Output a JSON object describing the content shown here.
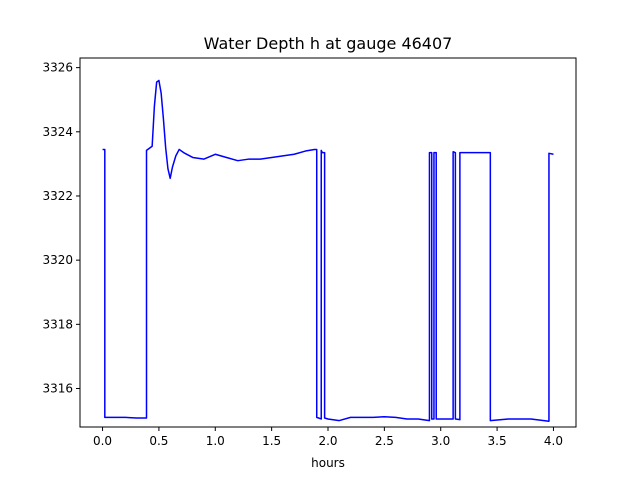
{
  "chart_data": {
    "type": "line",
    "title": "Water Depth h at gauge 46407",
    "xlabel": "hours",
    "ylabel": "",
    "xlim": [
      -0.2,
      4.2
    ],
    "ylim": [
      3314.8,
      3326.3
    ],
    "xticks": [
      0.0,
      0.5,
      1.0,
      1.5,
      2.0,
      2.5,
      3.0,
      3.5,
      4.0
    ],
    "xtick_labels": [
      "0.0",
      "0.5",
      "1.0",
      "1.5",
      "2.0",
      "2.5",
      "3.0",
      "3.5",
      "4.0"
    ],
    "yticks": [
      3316,
      3318,
      3320,
      3322,
      3324,
      3326
    ],
    "ytick_labels": [
      "3316",
      "3318",
      "3320",
      "3322",
      "3324",
      "3326"
    ],
    "grid": false,
    "series": [
      {
        "color": "#0000ff",
        "x": [
          0.0,
          0.02,
          0.02,
          0.1,
          0.2,
          0.3,
          0.39,
          0.39,
          0.44,
          0.46,
          0.48,
          0.5,
          0.52,
          0.54,
          0.56,
          0.58,
          0.6,
          0.62,
          0.65,
          0.68,
          0.72,
          0.8,
          0.9,
          1.0,
          1.1,
          1.2,
          1.3,
          1.4,
          1.5,
          1.6,
          1.7,
          1.8,
          1.88,
          1.9,
          1.9,
          1.94,
          1.94,
          1.95,
          1.97,
          1.97,
          2.0,
          2.1,
          2.2,
          2.3,
          2.4,
          2.5,
          2.6,
          2.7,
          2.8,
          2.9,
          2.9,
          2.92,
          2.92,
          2.94,
          2.94,
          2.96,
          2.96,
          2.98,
          3.1,
          3.11,
          3.11,
          3.13,
          3.13,
          3.17,
          3.17,
          3.2,
          3.3,
          3.44,
          3.44,
          3.6,
          3.8,
          3.96,
          3.96,
          4.0
        ],
        "y": [
          3323.45,
          3323.45,
          3315.1,
          3315.1,
          3315.1,
          3315.08,
          3315.08,
          3323.42,
          3323.55,
          3324.8,
          3325.55,
          3325.6,
          3325.2,
          3324.4,
          3323.5,
          3322.85,
          3322.55,
          3322.9,
          3323.25,
          3323.45,
          3323.35,
          3323.2,
          3323.15,
          3323.3,
          3323.2,
          3323.1,
          3323.15,
          3323.15,
          3323.2,
          3323.25,
          3323.3,
          3323.4,
          3323.45,
          3323.45,
          3315.1,
          3315.05,
          3323.42,
          3323.35,
          3323.35,
          3315.08,
          3315.05,
          3315.0,
          3315.1,
          3315.1,
          3315.1,
          3315.12,
          3315.1,
          3315.05,
          3315.05,
          3315.0,
          3323.35,
          3323.35,
          3315.05,
          3315.05,
          3323.35,
          3323.35,
          3315.05,
          3315.05,
          3315.05,
          3315.05,
          3323.38,
          3323.35,
          3315.05,
          3315.03,
          3323.35,
          3323.35,
          3323.35,
          3323.35,
          3315.0,
          3315.05,
          3315.05,
          3314.98,
          3323.33,
          3323.3
        ]
      }
    ]
  }
}
